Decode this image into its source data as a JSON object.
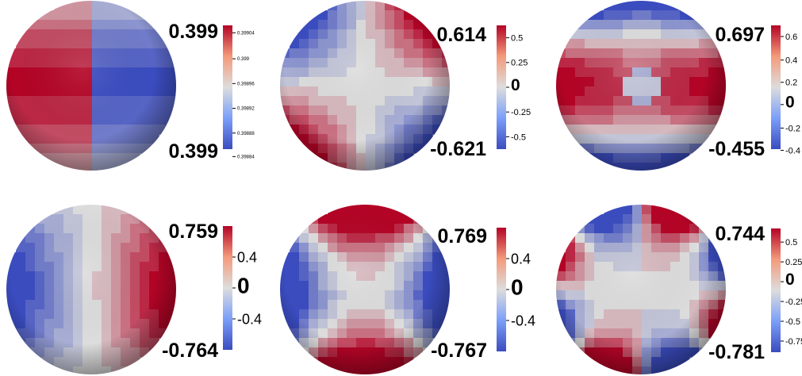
{
  "panels": [
    {
      "id": "p1",
      "pattern": "two-lobe-vertical-split",
      "max_label": "0.399",
      "min_label": "0.399",
      "colorbar_ticks": [
        "0.39904",
        "0.399",
        "0.39896",
        "0.39892",
        "0.39888",
        "0.39884"
      ],
      "colorbar_tick_fractions": [
        0.06,
        0.27,
        0.47,
        0.67,
        0.87,
        1.06
      ],
      "tick_size": "small"
    },
    {
      "id": "p2",
      "pattern": "quadrupole",
      "max_label": "0.614",
      "min_label": "-0.621",
      "colorbar_ticks": [
        "0.5",
        "0.25",
        "0",
        "-0.25",
        "-0.5"
      ],
      "colorbar_tick_fractions": [
        0.1,
        0.3,
        0.5,
        0.7,
        0.9
      ],
      "tick_size": "medium"
    },
    {
      "id": "p3",
      "pattern": "equatorial-band",
      "max_label": "0.697",
      "min_label": "-0.455",
      "colorbar_ticks": [
        "0.6",
        "0.4",
        "0.2",
        "0",
        "-0.2",
        "-0.4"
      ],
      "colorbar_tick_fractions": [
        0.09,
        0.28,
        0.46,
        0.64,
        0.83,
        1.01
      ],
      "tick_size": "medium"
    },
    {
      "id": "p4",
      "pattern": "two-lobe-horizontal",
      "max_label": "0.759",
      "min_label": "-0.764",
      "colorbar_ticks": [
        "0.4",
        "0",
        "-0.4"
      ],
      "colorbar_tick_fractions": [
        0.25,
        0.5,
        0.75
      ],
      "tick_size": "large"
    },
    {
      "id": "p5",
      "pattern": "quadrupole-inverted",
      "max_label": "0.769",
      "min_label": "-0.767",
      "colorbar_ticks": [
        "0.4",
        "0",
        "-0.4"
      ],
      "colorbar_tick_fractions": [
        0.25,
        0.5,
        0.75
      ],
      "tick_size": "large"
    },
    {
      "id": "p6",
      "pattern": "octupole",
      "max_label": "0.744",
      "min_label": "-0.781",
      "colorbar_ticks": [
        "0.5",
        "0.25",
        "0",
        "-0.25",
        "-0.5",
        "-0.75"
      ],
      "colorbar_tick_fractions": [
        0.11,
        0.27,
        0.43,
        0.59,
        0.75,
        0.91
      ],
      "tick_size": "medium"
    }
  ],
  "colormap": {
    "name": "cool-to-warm",
    "stops": [
      "#3b4cc0",
      "#dddddd",
      "#b40426"
    ]
  }
}
